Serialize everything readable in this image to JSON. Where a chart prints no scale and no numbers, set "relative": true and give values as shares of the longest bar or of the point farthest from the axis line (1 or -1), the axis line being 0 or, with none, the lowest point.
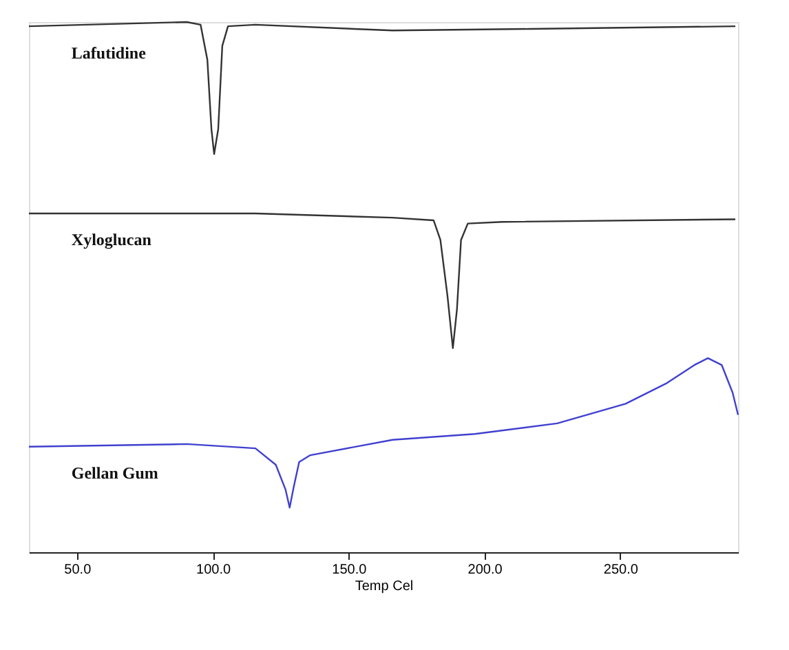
{
  "chart_data": {
    "type": "line",
    "relative": true,
    "xlabel": "Temp Cel",
    "xlim": [
      32.3,
      293.4
    ],
    "xticks": [
      {
        "value": 50,
        "label": "50.0"
      },
      {
        "value": 100,
        "label": "100.0"
      },
      {
        "value": 150,
        "label": "150.0"
      },
      {
        "value": 200,
        "label": "200.0"
      },
      {
        "value": 250,
        "label": "250.0"
      }
    ],
    "tick_labels": "x",
    "grid": false,
    "legend": false,
    "series": [
      {
        "name": "Lafutidine",
        "color": "#333333",
        "x": [
          32.3,
          90.4,
          95.5,
          98.0,
          99.5,
          100.5,
          102.0,
          103.5,
          105.6,
          115.7,
          166.2,
          216.7,
          292.4
        ],
        "values": [
          0.992,
          1,
          0.995,
          0.929,
          0.798,
          0.751,
          0.798,
          0.955,
          0.992,
          0.995,
          0.984,
          0.987,
          0.992
        ]
      },
      {
        "name": "Xyloglucan",
        "color": "#333333",
        "x": [
          32.3,
          115.7,
          166.2,
          181.3,
          183.8,
          186.4,
          188.4,
          189.9,
          191.4,
          193.9,
          206.6,
          292.4
        ],
        "values": [
          0.639,
          0.639,
          0.631,
          0.626,
          0.589,
          0.484,
          0.385,
          0.458,
          0.589,
          0.62,
          0.623,
          0.628
        ]
      },
      {
        "name": "Gellan Gum",
        "color": "#4040d0",
        "x": [
          32.3,
          90.4,
          115.7,
          123.2,
          126.8,
          128.3,
          129.8,
          131.8,
          135.9,
          166.2,
          196.5,
          226.8,
          252.0,
          267.2,
          277.3,
          282.3,
          287.4,
          291.4,
          293.4
        ],
        "values": [
          0.199,
          0.204,
          0.196,
          0.165,
          0.118,
          0.084,
          0.123,
          0.17,
          0.183,
          0.212,
          0.223,
          0.243,
          0.28,
          0.319,
          0.353,
          0.366,
          0.353,
          0.301,
          0.259
        ]
      }
    ]
  }
}
